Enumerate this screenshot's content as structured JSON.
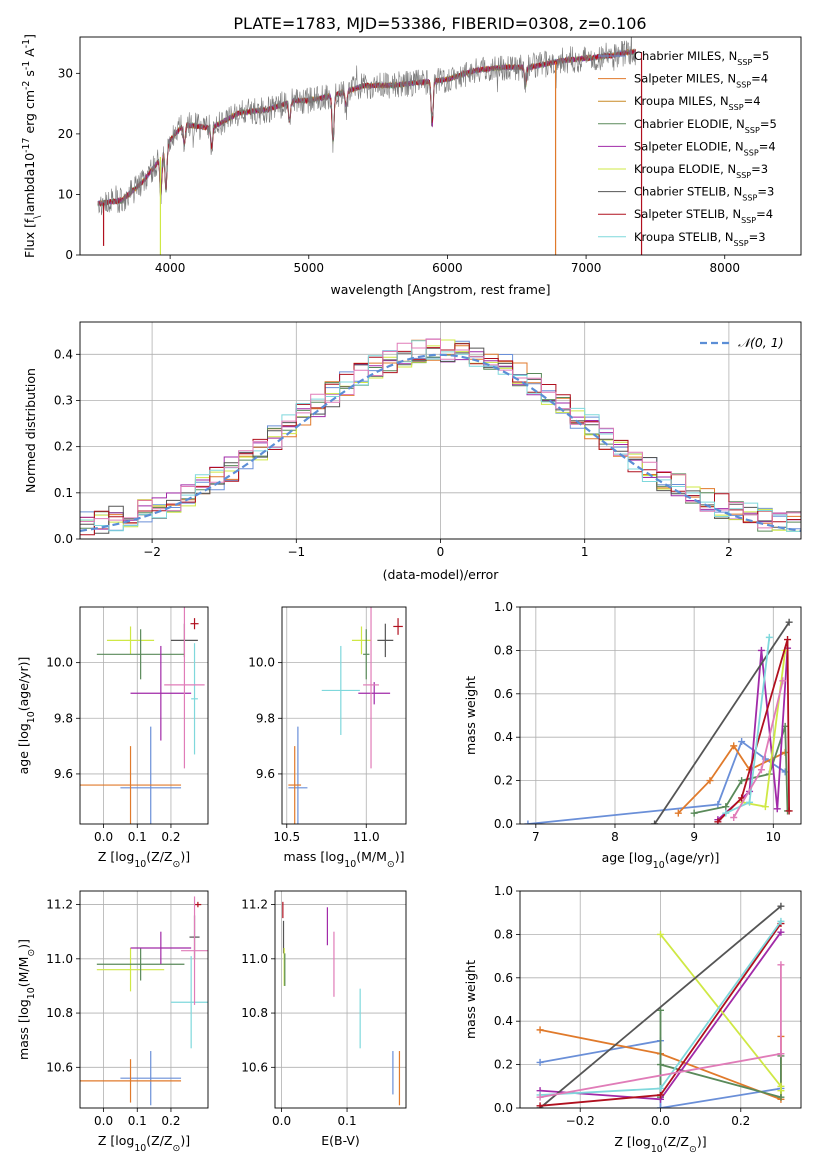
{
  "figure_title": "PLATE=1783, MJD=53386, FIBERID=0308, z=0.106",
  "colors": {
    "Chabrier MILES": "#6a8fd8",
    "Salpeter MILES": "#e07a2b",
    "Kroupa MILES": "#c98a25",
    "Chabrier ELODIE": "#5a8a5a",
    "Salpeter ELODIE": "#a12aa8",
    "Kroupa ELODIE": "#cfe845",
    "Chabrier STELIB": "#555555",
    "Salpeter STELIB": "#b0101f",
    "Kroupa STELIB": "#7fd8dc",
    "Pink": "#e07cb8",
    "Normal": "#5b8ed6"
  },
  "chart_data": [
    {
      "id": "spectrum",
      "type": "line",
      "xlabel": "wavelength [Angstrom, rest frame]",
      "ylabel": "Flux [f$_\\lambda$10$^{-17}$ erg cm$^{-2}$ s$^{-1}$ A$^{-1}$]",
      "xlim": [
        3350,
        8550
      ],
      "ylim": [
        0,
        36
      ],
      "xticks": [
        4000,
        5000,
        6000,
        7000,
        8000
      ],
      "yticks": [
        0,
        10,
        20,
        30
      ],
      "legend_position": "right",
      "legend": [
        {
          "label": "Chabrier MILES, N_SSP=5",
          "color": "#6a8fd8"
        },
        {
          "label": "Salpeter MILES, N_SSP=4",
          "color": "#e07a2b"
        },
        {
          "label": "Kroupa MILES, N_SSP=4",
          "color": "#c98a25"
        },
        {
          "label": "Chabrier ELODIE, N_SSP=5",
          "color": "#5a8a5a"
        },
        {
          "label": "Salpeter ELODIE, N_SSP=4",
          "color": "#a12aa8"
        },
        {
          "label": "Kroupa ELODIE, N_SSP=3",
          "color": "#cfe845"
        },
        {
          "label": "Chabrier STELIB, N_SSP=3",
          "color": "#555555"
        },
        {
          "label": "Salpeter STELIB, N_SSP=4",
          "color": "#b0101f"
        },
        {
          "label": "Kroupa STELIB, N_SSP=3",
          "color": "#7fd8dc"
        }
      ],
      "continuum": {
        "x": [
          3480,
          3650,
          3800,
          3900,
          4000,
          4100,
          4300,
          4500,
          4700,
          4900,
          5000,
          5200,
          5400,
          5600,
          5800,
          6000,
          6200,
          6400,
          6600,
          6800,
          7000,
          7200,
          7300
        ],
        "y": [
          8.5,
          9,
          12,
          15,
          19,
          21.5,
          21,
          23.5,
          24,
          25.5,
          25.5,
          26.5,
          28,
          28,
          28.5,
          29,
          30.5,
          31,
          31,
          32,
          32.5,
          33,
          33.5
        ]
      },
      "spikes": [
        {
          "x": 3520,
          "y": 1.5,
          "color": "#b0101f"
        },
        {
          "x": 3930,
          "y": 0,
          "color": "#cfe845"
        },
        {
          "x": 6780,
          "y": 0,
          "color": "#e07a2b"
        },
        {
          "x": 7400,
          "y": 0,
          "color": "#b0101f"
        }
      ]
    },
    {
      "id": "residuals",
      "type": "area",
      "xlabel": "(data-model)/error",
      "ylabel": "Normed distribution",
      "xlim": [
        -2.5,
        2.5
      ],
      "ylim": [
        0,
        0.47
      ],
      "xticks": [
        -2,
        -1,
        0,
        1,
        2
      ],
      "yticks": [
        0,
        0.1,
        0.2,
        0.3,
        0.4
      ],
      "grid": true,
      "legend_position": "top-right",
      "normal_label": "N(0,1)",
      "normal_color": "#5b8ed6",
      "histogram_colors": [
        "#6a8fd8",
        "#e07a2b",
        "#5a8a5a",
        "#a12aa8",
        "#cfe845",
        "#555555",
        "#b0101f",
        "#7fd8dc",
        "#e07cb8"
      ]
    },
    {
      "id": "age_vs_Z",
      "type": "scatter",
      "xlabel": "Z [log10(Z/Z⊙)]",
      "ylabel": "age [log10(age/yr)]",
      "xlim": [
        -0.07,
        0.31
      ],
      "ylim": [
        9.42,
        10.2
      ],
      "xticks": [
        0.0,
        0.1,
        0.2
      ],
      "yticks": [
        9.6,
        9.8,
        10.0
      ],
      "grid": true,
      "points": [
        {
          "x": 0.14,
          "y": 9.55,
          "xerr": 0.09,
          "yerr": 0.22,
          "color": "#6a8fd8"
        },
        {
          "x": 0.08,
          "y": 9.56,
          "xerr": 0.15,
          "yerr": 0.14,
          "color": "#e07a2b"
        },
        {
          "x": 0.08,
          "y": 10.08,
          "xerr": 0.07,
          "yerr": 0.05,
          "color": "#cfe845"
        },
        {
          "x": 0.11,
          "y": 10.03,
          "xerr": 0.13,
          "yerr": 0.09,
          "color": "#5a8a5a"
        },
        {
          "x": 0.17,
          "y": 9.89,
          "xerr": 0.09,
          "yerr": 0.17,
          "color": "#a12aa8"
        },
        {
          "x": 0.24,
          "y": 10.08,
          "xerr": 0.04,
          "yerr": 0.06,
          "color": "#555555"
        },
        {
          "x": 0.27,
          "y": 10.14,
          "xerr": 0.012,
          "yerr": 0.02,
          "color": "#b0101f"
        },
        {
          "x": 0.27,
          "y": 9.87,
          "xerr": 0.01,
          "yerr": 0.2,
          "color": "#7fd8dc"
        },
        {
          "x": 0.24,
          "y": 9.92,
          "xerr": 0.06,
          "yerr": 0.3,
          "color": "#e07cb8"
        }
      ]
    },
    {
      "id": "age_vs_mass",
      "type": "scatter",
      "xlabel": "mass [log10(M/M⊙)]",
      "ylabel": "",
      "xlim": [
        10.47,
        11.25
      ],
      "ylim": [
        9.42,
        10.2
      ],
      "xticks": [
        10.5,
        11.0
      ],
      "yticks": [
        9.6,
        9.8,
        10.0
      ],
      "grid": true,
      "points": [
        {
          "x": 10.57,
          "y": 9.55,
          "xerr": 0.06,
          "yerr": 0.22,
          "color": "#6a8fd8"
        },
        {
          "x": 10.55,
          "y": 9.56,
          "xerr": 0.04,
          "yerr": 0.14,
          "color": "#e07a2b"
        },
        {
          "x": 10.97,
          "y": 10.08,
          "xerr": 0.06,
          "yerr": 0.05,
          "color": "#cfe845"
        },
        {
          "x": 11.0,
          "y": 10.03,
          "xerr": 0.02,
          "yerr": 0.09,
          "color": "#5a8a5a"
        },
        {
          "x": 11.05,
          "y": 9.89,
          "xerr": 0.1,
          "yerr": 0.04,
          "color": "#a12aa8"
        },
        {
          "x": 11.12,
          "y": 10.08,
          "xerr": 0.05,
          "yerr": 0.06,
          "color": "#555555"
        },
        {
          "x": 11.2,
          "y": 10.13,
          "xerr": 0.03,
          "yerr": 0.03,
          "color": "#b0101f"
        },
        {
          "x": 10.84,
          "y": 9.9,
          "xerr": 0.12,
          "yerr": 0.16,
          "color": "#7fd8dc"
        },
        {
          "x": 11.03,
          "y": 9.92,
          "xerr": 0.05,
          "yerr": 0.3,
          "color": "#e07cb8"
        }
      ]
    },
    {
      "id": "mass_weight_vs_age",
      "type": "line",
      "xlabel": "age [log10(age/yr)]",
      "ylabel": "mass weight",
      "xlim": [
        6.8,
        10.35
      ],
      "ylim": [
        0,
        1.0
      ],
      "xticks": [
        7,
        8,
        9,
        10
      ],
      "yticks": [
        0.0,
        0.2,
        0.4,
        0.6,
        0.8,
        1.0
      ],
      "grid": true,
      "series": [
        {
          "color": "#6a8fd8",
          "x": [
            6.9,
            9.3,
            9.6,
            9.9,
            10.15
          ],
          "y": [
            0.0,
            0.09,
            0.38,
            0.3,
            0.24
          ]
        },
        {
          "color": "#e07a2b",
          "x": [
            8.8,
            9.2,
            9.5,
            9.7,
            10.15
          ],
          "y": [
            0.05,
            0.2,
            0.36,
            0.25,
            0.33
          ]
        },
        {
          "color": "#5a8a5a",
          "x": [
            9.0,
            9.4,
            9.6,
            9.95,
            10.15,
            10.18
          ],
          "y": [
            0.05,
            0.08,
            0.2,
            0.23,
            0.45,
            0.06
          ]
        },
        {
          "color": "#a12aa8",
          "x": [
            9.3,
            9.7,
            9.85,
            10.05,
            10.18
          ],
          "y": [
            0.02,
            0.15,
            0.8,
            0.07,
            0.81
          ]
        },
        {
          "color": "#cfe845",
          "x": [
            9.6,
            9.9,
            10.15
          ],
          "y": [
            0.1,
            0.08,
            0.8
          ]
        },
        {
          "color": "#555555",
          "x": [
            8.5,
            10.2
          ],
          "y": [
            0.0,
            0.93
          ]
        },
        {
          "color": "#b0101f",
          "x": [
            9.3,
            9.6,
            10.18,
            10.2
          ],
          "y": [
            0.01,
            0.12,
            0.85,
            0.06
          ]
        },
        {
          "color": "#7fd8dc",
          "x": [
            9.4,
            9.7,
            9.95
          ],
          "y": [
            0.05,
            0.1,
            0.86
          ]
        },
        {
          "color": "#e07cb8",
          "x": [
            9.5,
            9.85,
            10.12
          ],
          "y": [
            0.03,
            0.25,
            0.66
          ]
        }
      ]
    },
    {
      "id": "mass_vs_Z",
      "type": "scatter",
      "xlabel": "Z [log10(Z/Z⊙)]",
      "ylabel": "mass [log10(M/M⊙)]",
      "xlim": [
        -0.07,
        0.31
      ],
      "ylim": [
        10.45,
        11.25
      ],
      "xticks": [
        0.0,
        0.1,
        0.2
      ],
      "yticks": [
        10.6,
        10.8,
        11.0,
        11.2
      ],
      "grid": true,
      "points": [
        {
          "x": 0.14,
          "y": 10.56,
          "xerr": 0.09,
          "yerr": 0.1,
          "color": "#6a8fd8"
        },
        {
          "x": 0.08,
          "y": 10.55,
          "xerr": 0.15,
          "yerr": 0.08,
          "color": "#e07a2b"
        },
        {
          "x": 0.08,
          "y": 10.96,
          "xerr": 0.1,
          "yerr": 0.08,
          "color": "#cfe845"
        },
        {
          "x": 0.11,
          "y": 10.98,
          "xerr": 0.13,
          "yerr": 0.06,
          "color": "#5a8a5a"
        },
        {
          "x": 0.17,
          "y": 11.04,
          "xerr": 0.09,
          "yerr": 0.06,
          "color": "#a12aa8"
        },
        {
          "x": 0.27,
          "y": 11.08,
          "xerr": 0.015,
          "yerr": 0.08,
          "color": "#555555"
        },
        {
          "x": 0.28,
          "y": 11.2,
          "xerr": 0.01,
          "yerr": 0.01,
          "color": "#b0101f"
        },
        {
          "x": 0.26,
          "y": 10.84,
          "xerr": 0.06,
          "yerr": 0.17,
          "color": "#7fd8dc"
        },
        {
          "x": 0.27,
          "y": 11.03,
          "xerr": 0.04,
          "yerr": 0.2,
          "color": "#e07cb8"
        }
      ]
    },
    {
      "id": "mass_vs_ebv",
      "type": "scatter",
      "xlabel": "E(B-V)",
      "ylabel": "",
      "xlim": [
        -0.01,
        0.19
      ],
      "ylim": [
        10.45,
        11.25
      ],
      "xticks": [
        0.0,
        0.1
      ],
      "yticks": [
        10.6,
        10.8,
        11.0,
        11.2
      ],
      "grid": true,
      "points": [
        {
          "x": 0.002,
          "y": 11.18,
          "xerr": 0,
          "yerr": 0.03,
          "color": "#b0101f"
        },
        {
          "x": 0.003,
          "y": 11.08,
          "xerr": 0,
          "yerr": 0.06,
          "color": "#555555"
        },
        {
          "x": 0.004,
          "y": 10.97,
          "xerr": 0,
          "yerr": 0.07,
          "color": "#cfe845"
        },
        {
          "x": 0.005,
          "y": 10.96,
          "xerr": 0,
          "yerr": 0.06,
          "color": "#5a8a5a"
        },
        {
          "x": 0.07,
          "y": 11.12,
          "xerr": 0,
          "yerr": 0.07,
          "color": "#a12aa8"
        },
        {
          "x": 0.08,
          "y": 10.98,
          "xerr": 0,
          "yerr": 0.12,
          "color": "#e07cb8"
        },
        {
          "x": 0.12,
          "y": 10.78,
          "xerr": 0,
          "yerr": 0.11,
          "color": "#7fd8dc"
        },
        {
          "x": 0.17,
          "y": 10.58,
          "xerr": 0,
          "yerr": 0.08,
          "color": "#6a8fd8"
        },
        {
          "x": 0.18,
          "y": 10.56,
          "xerr": 0,
          "yerr": 0.1,
          "color": "#e07a2b"
        }
      ]
    },
    {
      "id": "mass_weight_vs_Z",
      "type": "line",
      "xlabel": "Z [log10(Z/Z⊙)]",
      "ylabel": "mass weight",
      "xlim": [
        -0.35,
        0.35
      ],
      "ylim": [
        0,
        1.0
      ],
      "xticks": [
        -0.2,
        0.0,
        0.2
      ],
      "yticks": [
        0.0,
        0.2,
        0.4,
        0.6,
        0.8,
        1.0
      ],
      "grid": true,
      "series": [
        {
          "color": "#6a8fd8",
          "x": [
            -0.3,
            0.0,
            0.0,
            0.3
          ],
          "y": [
            0.21,
            0.31,
            0.0,
            0.09
          ]
        },
        {
          "color": "#e07a2b",
          "x": [
            -0.3,
            0.0,
            0.3,
            0.3
          ],
          "y": [
            0.36,
            0.25,
            0.04,
            0.33
          ]
        },
        {
          "color": "#5a8a5a",
          "x": [
            0.0,
            0.0,
            0.0,
            0.3,
            0.3
          ],
          "y": [
            0.45,
            0.05,
            0.2,
            0.05,
            0.24
          ]
        },
        {
          "color": "#a12aa8",
          "x": [
            -0.3,
            0.0,
            0.3
          ],
          "y": [
            0.08,
            0.04,
            0.81
          ]
        },
        {
          "color": "#cfe845",
          "x": [
            0.0,
            0.3,
            0.3
          ],
          "y": [
            0.8,
            0.1,
            0.08
          ]
        },
        {
          "color": "#555555",
          "x": [
            -0.3,
            0.3
          ],
          "y": [
            0.0,
            0.93
          ]
        },
        {
          "color": "#b0101f",
          "x": [
            -0.3,
            0.0,
            0.3
          ],
          "y": [
            0.01,
            0.06,
            0.85
          ]
        },
        {
          "color": "#7fd8dc",
          "x": [
            -0.3,
            0.0,
            0.3
          ],
          "y": [
            0.06,
            0.09,
            0.86
          ]
        },
        {
          "color": "#e07cb8",
          "x": [
            -0.3,
            0.3,
            0.3
          ],
          "y": [
            0.05,
            0.25,
            0.66
          ]
        }
      ]
    }
  ]
}
